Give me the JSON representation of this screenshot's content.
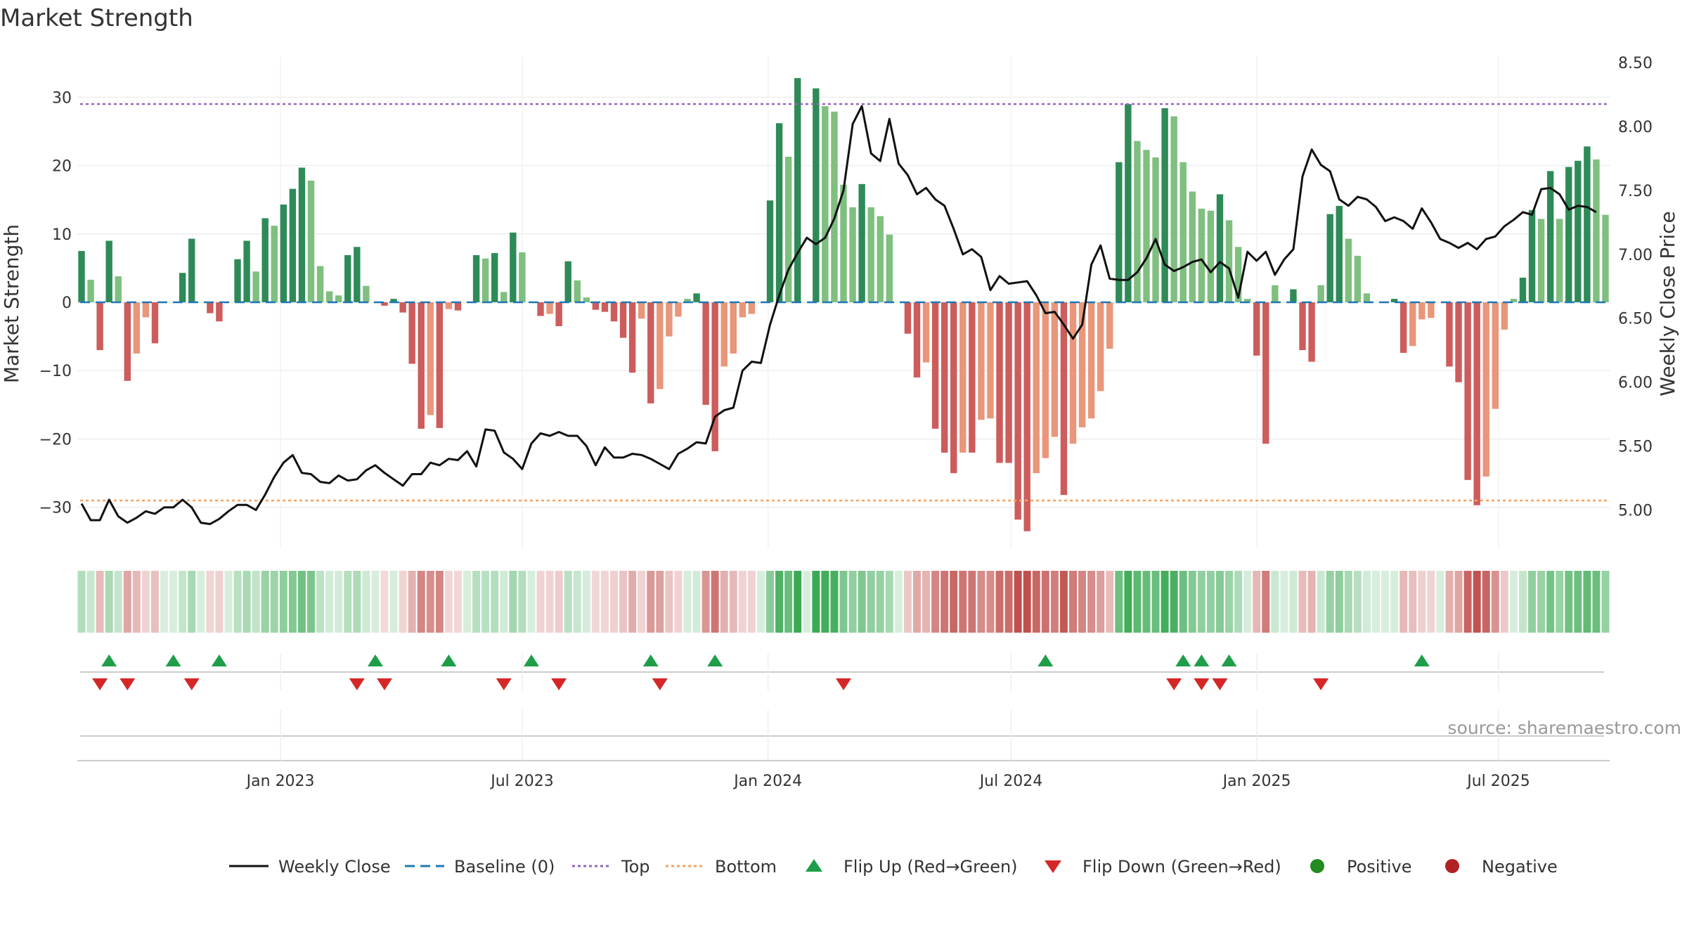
{
  "chart_data": {
    "type": "bar",
    "title": "Market Strength",
    "ylabel_left": "Market Strength",
    "ylabel_right": "Weekly Close Price",
    "ylim_left": [
      -36,
      36
    ],
    "ylim_right": [
      4.7,
      8.55
    ],
    "yticks_left": [
      30,
      20,
      10,
      0,
      -10,
      -20,
      -30
    ],
    "yticks_left_labels": [
      "30",
      "20",
      "10",
      "0",
      "−10",
      "−20",
      "−30"
    ],
    "yticks_right": [
      8.5,
      8.0,
      7.5,
      7.0,
      6.5,
      6.0,
      5.5,
      5.0
    ],
    "yticks_right_labels": [
      "8.50",
      "8.00",
      "7.50",
      "7.00",
      "6.50",
      "6.00",
      "5.50",
      "5.00"
    ],
    "xticks": [
      "Jan 2023",
      "Jul 2023",
      "Jan 2024",
      "Jul 2024",
      "Jan 2025",
      "Jul 2025"
    ],
    "x_first_week": "2022-08-05",
    "x_last_week": "2025-09-19",
    "top_line": 29,
    "bottom_line": -29,
    "baseline": 0,
    "strength": [
      7.5,
      3.3,
      -7,
      9,
      3.8,
      -11.5,
      -7.5,
      -2.2,
      -6,
      0,
      0,
      4.3,
      9.3,
      0,
      -1.6,
      -2.8,
      0,
      6.3,
      9,
      4.5,
      12.3,
      11.2,
      14.3,
      16.6,
      19.7,
      17.8,
      5.3,
      1.6,
      1,
      6.9,
      8.1,
      2.4,
      0,
      -0.5,
      0.5,
      -1.5,
      -9,
      -18.5,
      -16.5,
      -18.4,
      -1,
      -1.2,
      0,
      6.9,
      6.4,
      7.2,
      1.5,
      10.2,
      7.3,
      0,
      -2,
      -1.7,
      -3.5,
      6,
      3.2,
      0.7,
      -1.1,
      -1.4,
      -2.8,
      -5.2,
      -10.3,
      -2.4,
      -14.8,
      -12.7,
      -5,
      -2.1,
      0.5,
      1.3,
      -15,
      -21.8,
      -9.4,
      -7.5,
      -2.2,
      -1.7,
      0,
      14.9,
      26.2,
      21.3,
      32.8,
      0,
      31.3,
      28.7,
      27.9,
      17.2,
      13.9,
      17.3,
      13.9,
      12.6,
      9.9,
      0,
      -4.6,
      -11,
      -8.8,
      -18.5,
      -22,
      -25,
      -22,
      -22,
      -17.2,
      -17,
      -23.5,
      -23.5,
      -31.8,
      -33.5,
      -25,
      -22.8,
      -19.7,
      -28.2,
      -20.7,
      -18.3,
      -17,
      -13,
      -6.8,
      20.5,
      29,
      23.6,
      22.3,
      21.2,
      28.4,
      27.2,
      20.5,
      16.2,
      13.7,
      13.4,
      15.8,
      12,
      8.1,
      0.5,
      -7.8,
      -20.7,
      2.5,
      0,
      1.9,
      -7,
      -8.7,
      2.5,
      12.9,
      14.1,
      9.3,
      6.8,
      1.3,
      0,
      0,
      0.5,
      -7.4,
      -6.4,
      -2.5,
      -2.3,
      0,
      -9.4,
      -11.7,
      -26,
      -29.7,
      -25.5,
      -15.6,
      -4,
      0.5,
      3.6,
      13.5,
      12.2,
      19.2,
      12.2,
      19.8,
      20.7,
      22.8,
      20.9,
      12.8
    ],
    "weekly_close": [
      5.05,
      4.92,
      4.92,
      5.08,
      4.95,
      4.9,
      4.94,
      4.99,
      4.97,
      5.02,
      5.02,
      5.08,
      5.02,
      4.9,
      4.89,
      4.93,
      4.99,
      5.04,
      5.04,
      5.0,
      5.12,
      5.26,
      5.37,
      5.43,
      5.29,
      5.28,
      5.22,
      5.21,
      5.27,
      5.23,
      5.24,
      5.31,
      5.35,
      5.29,
      5.24,
      5.19,
      5.28,
      5.28,
      5.37,
      5.35,
      5.4,
      5.39,
      5.46,
      5.34,
      5.63,
      5.62,
      5.45,
      5.4,
      5.32,
      5.52,
      5.6,
      5.58,
      5.61,
      5.58,
      5.58,
      5.5,
      5.35,
      5.49,
      5.41,
      5.41,
      5.44,
      5.43,
      5.4,
      5.36,
      5.32,
      5.44,
      5.48,
      5.53,
      5.52,
      5.73,
      5.78,
      5.8,
      6.09,
      6.16,
      6.15,
      6.45,
      6.68,
      6.88,
      7.01,
      7.13,
      7.08,
      7.13,
      7.28,
      7.5,
      8.02,
      8.16,
      7.79,
      7.73,
      8.06,
      7.71,
      7.62,
      7.47,
      7.52,
      7.43,
      7.38,
      7.2,
      7.0,
      7.04,
      6.98,
      6.72,
      6.83,
      6.77,
      6.78,
      6.79,
      6.68,
      6.54,
      6.55,
      6.45,
      6.34,
      6.45,
      6.92,
      7.07,
      6.81,
      6.8,
      6.8,
      6.86,
      6.97,
      7.12,
      6.92,
      6.87,
      6.9,
      6.94,
      6.96,
      6.86,
      6.94,
      6.89,
      6.66,
      7.02,
      6.95,
      7.02,
      6.84,
      6.96,
      7.04,
      7.61,
      7.82,
      7.7,
      7.65,
      7.43,
      7.38,
      7.45,
      7.43,
      7.37,
      7.26,
      7.29,
      7.26,
      7.2,
      7.36,
      7.25,
      7.12,
      7.09,
      7.05,
      7.09,
      7.04,
      7.12,
      7.14,
      7.22,
      7.27,
      7.33,
      7.31,
      7.51,
      7.52,
      7.47,
      7.35,
      7.38,
      7.37,
      7.33
    ],
    "flip_up_idx": [
      3,
      10,
      15,
      32,
      40,
      49,
      62,
      69,
      105,
      120,
      122,
      125,
      146
    ],
    "flip_down_idx": [
      2,
      5,
      12,
      30,
      33,
      46,
      52,
      63,
      83,
      119,
      122,
      124,
      135
    ],
    "series": [
      {
        "name": "Weekly Close",
        "color": "#111111"
      },
      {
        "name": "Baseline (0)",
        "color": "#1f77b4"
      },
      {
        "name": "Top",
        "color": "#9467bd"
      },
      {
        "name": "Bottom",
        "color": "#f4a261"
      },
      {
        "name": "Flip Up (Red→Green)",
        "color": "#1f9e4a"
      },
      {
        "name": "Flip Down (Green→Red)",
        "color": "#d62728"
      },
      {
        "name": "Positive",
        "color": "#228b22"
      },
      {
        "name": "Negative",
        "color": "#b22222"
      }
    ],
    "colors": {
      "strong_green": "#2e8b57",
      "light_green": "#7fbf7f",
      "strong_red": "#cd5c5c",
      "light_red": "#e9967a"
    }
  },
  "source": "source: sharemaestro.com"
}
